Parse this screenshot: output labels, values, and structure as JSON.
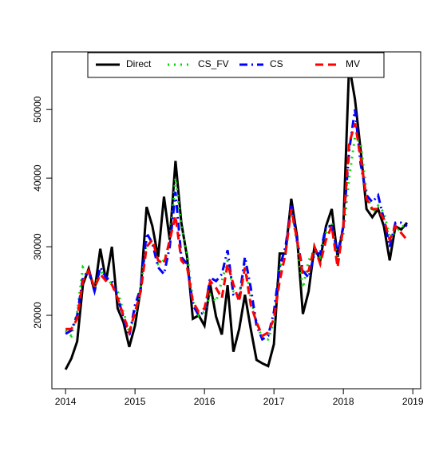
{
  "chart_data": {
    "type": "line",
    "x": [
      2014,
      2014.083,
      2014.167,
      2014.25,
      2014.333,
      2014.417,
      2014.5,
      2014.583,
      2014.667,
      2014.75,
      2014.833,
      2014.917,
      2015,
      2015.083,
      2015.167,
      2015.25,
      2015.333,
      2015.417,
      2015.5,
      2015.583,
      2015.667,
      2015.75,
      2015.833,
      2015.917,
      2016,
      2016.083,
      2016.167,
      2016.25,
      2016.333,
      2016.417,
      2016.5,
      2016.583,
      2016.667,
      2016.75,
      2016.833,
      2016.917,
      2017,
      2017.083,
      2017.167,
      2017.25,
      2017.333,
      2017.417,
      2017.5,
      2017.583,
      2017.667,
      2017.75,
      2017.833,
      2017.917,
      2018,
      2018.083,
      2018.167,
      2018.25,
      2018.333,
      2018.417,
      2018.5,
      2018.583,
      2018.667,
      2018.75,
      2018.833,
      2018.917
    ],
    "series": [
      {
        "name": "Direct",
        "color": "#000000",
        "dash": "",
        "values": [
          12100,
          13700,
          16200,
          24500,
          26800,
          23500,
          29700,
          25000,
          30000,
          21000,
          19000,
          15400,
          18500,
          24000,
          35800,
          33000,
          28500,
          37300,
          31000,
          42500,
          33500,
          28500,
          19500,
          20000,
          18500,
          24500,
          19800,
          17200,
          24400,
          14700,
          18000,
          23000,
          18000,
          13500,
          13000,
          12600,
          15800,
          29000,
          29000,
          37000,
          31500,
          20200,
          23500,
          30000,
          28000,
          33000,
          35500,
          28500,
          33000,
          56500,
          51500,
          44000,
          35500,
          34300,
          35500,
          33000,
          28000,
          33000,
          32500,
          33500
        ]
      },
      {
        "name": "CS_FV",
        "color": "#00dd00",
        "dash": "2 6",
        "values": [
          17800,
          17000,
          20500,
          27000,
          26000,
          24000,
          26500,
          25500,
          24500,
          23500,
          20500,
          17500,
          20000,
          24000,
          31000,
          31000,
          27500,
          28000,
          30500,
          40000,
          33000,
          29000,
          22000,
          20000,
          20500,
          23000,
          22000,
          25000,
          28000,
          23500,
          23000,
          27500,
          22500,
          19000,
          16500,
          16500,
          19000,
          27000,
          29000,
          35500,
          30500,
          24000,
          28000,
          29500,
          28500,
          32000,
          33500,
          28000,
          32000,
          40000,
          46000,
          45000,
          38000,
          35000,
          36000,
          35000,
          31500,
          32000,
          33000,
          33000
        ]
      },
      {
        "name": "CS",
        "color": "#0000ff",
        "dash": "10 5 2 5",
        "values": [
          17300,
          17800,
          20000,
          25500,
          26500,
          23500,
          27000,
          25500,
          25000,
          22800,
          19500,
          17000,
          21500,
          24000,
          32000,
          30500,
          27000,
          26000,
          30000,
          38000,
          28500,
          27500,
          21500,
          20000,
          20500,
          25500,
          25000,
          26000,
          29500,
          23000,
          22500,
          28500,
          24000,
          18500,
          16500,
          17000,
          20500,
          27000,
          30000,
          36000,
          31000,
          26500,
          25500,
          29000,
          29000,
          33000,
          33000,
          29000,
          33000,
          44000,
          50000,
          42000,
          37500,
          36500,
          37500,
          34000,
          30000,
          33500,
          33500,
          33000
        ]
      },
      {
        "name": "MV",
        "color": "#ff0000",
        "dash": "10 6",
        "values": [
          18000,
          18000,
          19500,
          25000,
          26500,
          24000,
          26000,
          25000,
          24500,
          22500,
          20000,
          17500,
          20500,
          23500,
          30000,
          31000,
          28000,
          27500,
          31000,
          34500,
          28000,
          27000,
          22000,
          20500,
          21000,
          25000,
          24000,
          22500,
          27500,
          24500,
          22000,
          27000,
          21500,
          19000,
          17000,
          17500,
          19500,
          25000,
          29000,
          35500,
          31000,
          26000,
          26500,
          30000,
          27500,
          31000,
          33000,
          27000,
          33000,
          45000,
          48000,
          43000,
          37000,
          35500,
          35500,
          34000,
          31000,
          33000,
          32000,
          31000
        ]
      }
    ],
    "xlim": [
      2013.803,
      2019.113
    ],
    "xticks": [
      2014,
      2015,
      2016,
      2017,
      2018,
      2019
    ],
    "ylim": [
      9300,
      58400
    ],
    "yticks": [
      20000,
      30000,
      40000,
      50000
    ],
    "legend": "top"
  }
}
